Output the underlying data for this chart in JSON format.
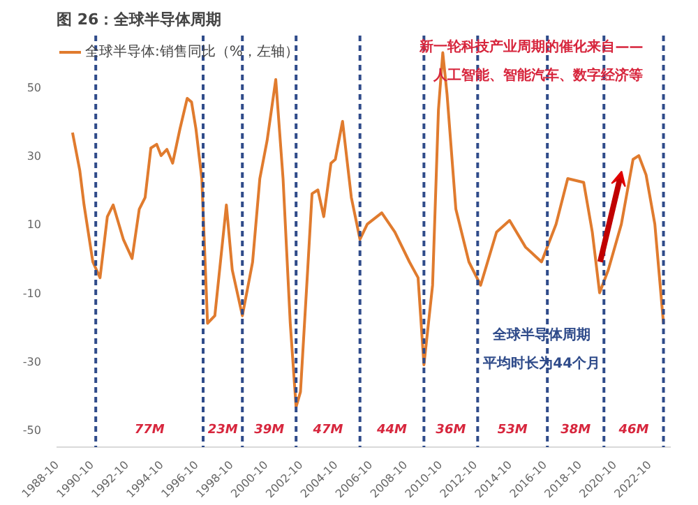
{
  "chart_data": {
    "type": "line",
    "title": "图 26：全球半导体周期",
    "x": [
      "1989-09",
      "1990-02",
      "1990-05",
      "1990-11",
      "1991-04",
      "1991-09",
      "1992-01",
      "1992-08",
      "1993-02",
      "1993-07",
      "1993-11",
      "1994-03",
      "1994-07",
      "1994-10",
      "1995-02",
      "1995-06",
      "1995-11",
      "1996-04",
      "1996-07",
      "1996-10",
      "1997-02",
      "1997-06",
      "1997-11",
      "1998-07",
      "1998-11",
      "1999-06",
      "2000-01",
      "2000-06",
      "2000-11",
      "2001-05",
      "2001-10",
      "2002-03",
      "2002-07",
      "2002-10",
      "2003-03",
      "2003-06",
      "2003-10",
      "2004-02",
      "2004-07",
      "2004-10",
      "2005-03",
      "2005-09",
      "2006-03",
      "2006-08",
      "2007-06",
      "2008-03",
      "2009-01",
      "2009-07",
      "2009-11",
      "2010-05",
      "2010-09",
      "2010-12",
      "2011-03",
      "2011-09",
      "2012-06",
      "2013-02",
      "2014-01",
      "2014-10",
      "2015-09",
      "2016-08",
      "2017-06",
      "2018-02",
      "2019-01",
      "2019-07",
      "2019-12",
      "2020-06",
      "2021-03",
      "2021-11",
      "2022-03",
      "2022-08",
      "2023-02",
      "2023-08"
    ],
    "series": [
      {
        "name": "全球半导体:销售同比（%，左轴）",
        "color": "#e07b2e",
        "values": [
          36.7,
          25.6,
          15.6,
          -1,
          -5.6,
          12.2,
          15.6,
          5.6,
          0,
          14.4,
          17.8,
          32.2,
          33.3,
          30,
          31.8,
          27.8,
          37.8,
          46.7,
          45.6,
          37.8,
          23.3,
          -18.9,
          -16.7,
          15.6,
          -3.3,
          -16.7,
          -1.1,
          23.3,
          34.4,
          52.2,
          23.3,
          -18.9,
          -43.3,
          -38.9,
          -3.3,
          18.9,
          20,
          12.2,
          27.8,
          28.9,
          40,
          17.8,
          5.6,
          10,
          13.3,
          7.7,
          -1,
          -5.6,
          -31,
          -7.8,
          43.3,
          60,
          47.8,
          14.4,
          -1,
          -7.8,
          7.7,
          11.1,
          3.3,
          -1,
          10,
          23.3,
          22.2,
          7.7,
          -10,
          -3.3,
          10,
          28.9,
          30,
          24.4,
          10,
          -18.9
        ]
      }
    ],
    "xlim": [
      "1988-10",
      "2024-01"
    ],
    "ylim": [
      -55,
      65
    ],
    "xticks": [
      "1988-10",
      "1990-10",
      "1992-10",
      "1994-10",
      "1996-10",
      "1998-10",
      "2000-10",
      "2002-10",
      "2004-10",
      "2006-10",
      "2008-10",
      "2010-10",
      "2012-10",
      "2014-10",
      "2016-10",
      "2018-10",
      "2020-10",
      "2022-10"
    ],
    "yticks": [
      -50,
      -30,
      -10,
      10,
      30,
      50
    ],
    "legend": "top left",
    "ref_lines": [
      {
        "axis": "x",
        "value": "1991-01",
        "color": "#2f4b8a",
        "line_style": "dashed"
      },
      {
        "axis": "x",
        "value": "1997-03",
        "color": "#2f4b8a",
        "line_style": "dashed"
      },
      {
        "axis": "x",
        "value": "1999-06",
        "color": "#2f4b8a",
        "line_style": "dashed"
      },
      {
        "axis": "x",
        "value": "2002-07",
        "color": "#2f4b8a",
        "line_style": "dashed"
      },
      {
        "axis": "x",
        "value": "2006-03",
        "color": "#2f4b8a",
        "line_style": "dashed"
      },
      {
        "axis": "x",
        "value": "2009-11",
        "color": "#2f4b8a",
        "line_style": "dashed"
      },
      {
        "axis": "x",
        "value": "2012-12",
        "color": "#2f4b8a",
        "line_style": "dashed"
      },
      {
        "axis": "x",
        "value": "2016-12",
        "color": "#2f4b8a",
        "line_style": "dashed"
      },
      {
        "axis": "x",
        "value": "2020-03",
        "color": "#2f4b8a",
        "line_style": "dashed"
      },
      {
        "axis": "x",
        "value": "2023-08",
        "color": "#2f4b8a",
        "line_style": "dashed"
      }
    ],
    "annotations": [
      "77M",
      "23M",
      "39M",
      "47M",
      "44M",
      "36M",
      "53M",
      "38M",
      "46M",
      "新一轮科技产业周期的催化来自——",
      "人工智能、智能汽车、数字经济等",
      "全球半导体周期",
      "平均时长为44个月"
    ]
  }
}
